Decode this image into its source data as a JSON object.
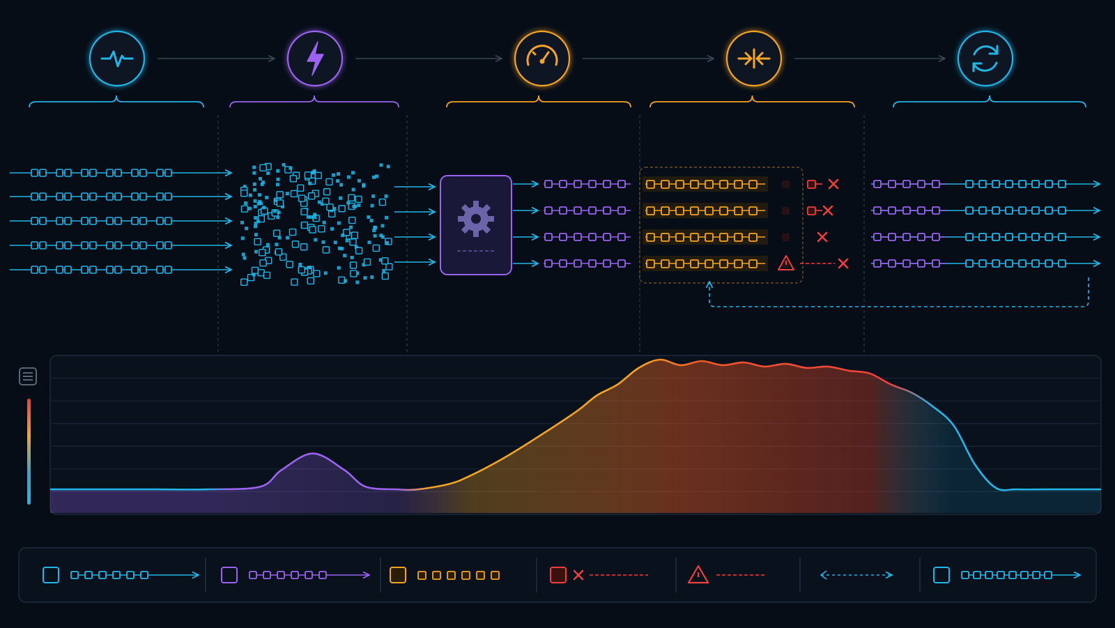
{
  "colors": {
    "background": "#060d17",
    "normal": "#22b6e8",
    "burst": "#9b63f0",
    "throttled": "#f5a524",
    "dropped": "#ef3f3f",
    "recovered": "#22b6e8",
    "grid": "#1d2a3a",
    "divider": "#2c3a4c"
  },
  "stages": [
    {
      "key": "normal",
      "icon": "heartbeat-icon",
      "color": "#22b6e8"
    },
    {
      "key": "burst",
      "icon": "lightning-icon",
      "color": "#9b63f0"
    },
    {
      "key": "rate-limit",
      "icon": "gauge-icon",
      "color": "#f5a524"
    },
    {
      "key": "backpressure",
      "icon": "compress-icon",
      "color": "#f5a524"
    },
    {
      "key": "recovery",
      "icon": "refresh-icon",
      "color": "#22b6e8"
    }
  ],
  "flow": {
    "input_streams": 5,
    "limited_streams": 4,
    "limiter_icon": "gear-icon",
    "drops": [
      {
        "row": 0,
        "type": "drop"
      },
      {
        "row": 1,
        "type": "drop"
      },
      {
        "row": 2,
        "type": "drop"
      },
      {
        "row": 3,
        "type": "warning-drop"
      }
    ],
    "retry_path": "dashed-loop-back"
  },
  "chart_data": {
    "type": "area",
    "title": "",
    "xlabel": "",
    "ylabel": "",
    "grid": true,
    "gradient_scale": true,
    "ylim": [
      0,
      1
    ],
    "x": [
      0,
      5,
      10,
      15,
      20,
      22,
      25,
      28,
      30,
      33,
      35,
      38,
      40,
      43,
      46,
      50,
      52,
      54,
      56,
      58,
      60,
      62,
      64,
      66,
      68,
      70,
      72,
      74,
      76,
      78,
      80,
      82,
      84,
      86,
      88,
      90,
      92,
      95,
      100
    ],
    "y": [
      0.06,
      0.06,
      0.06,
      0.06,
      0.08,
      0.2,
      0.32,
      0.2,
      0.08,
      0.06,
      0.06,
      0.1,
      0.16,
      0.28,
      0.42,
      0.62,
      0.74,
      0.82,
      0.94,
      1.0,
      0.96,
      0.99,
      0.96,
      0.98,
      0.95,
      0.97,
      0.94,
      0.95,
      0.92,
      0.9,
      0.82,
      0.76,
      0.66,
      0.52,
      0.24,
      0.07,
      0.06,
      0.06,
      0.06
    ]
  },
  "legend": [
    {
      "key": "normal",
      "color": "#22b6e8",
      "style": "square-chain-arrow",
      "icon": "square-icon"
    },
    {
      "key": "burst",
      "color": "#9b63f0",
      "style": "square-dots-arrow",
      "icon": "square-icon"
    },
    {
      "key": "throttled",
      "color": "#f5a524",
      "style": "square-dots",
      "icon": "square-icon"
    },
    {
      "key": "dropped",
      "color": "#ef3f3f",
      "style": "x-dashed",
      "icon": "square-icon"
    },
    {
      "key": "warning",
      "color": "#ef3f3f",
      "style": "dashed",
      "icon": "warning-icon"
    },
    {
      "key": "retry",
      "color": "#22b6e8",
      "style": "double-dashed-arrow",
      "icon": ""
    },
    {
      "key": "recovered",
      "color": "#22b6e8",
      "style": "square-chain-arrow",
      "icon": "square-icon"
    }
  ]
}
